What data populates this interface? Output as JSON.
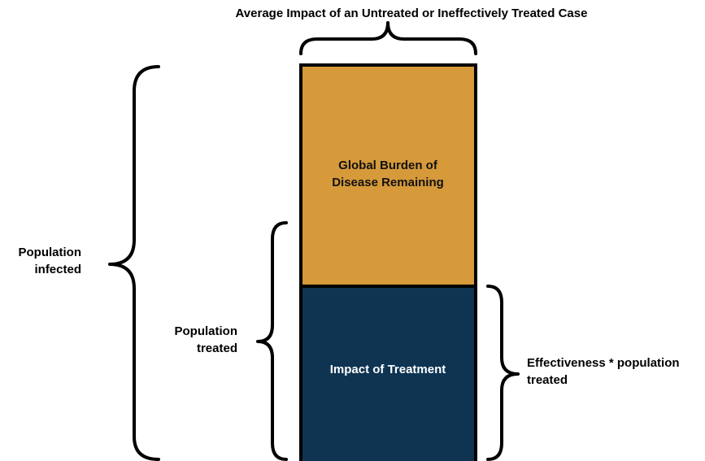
{
  "title": "Average Impact of an Untreated or Ineffectively Treated Case",
  "boxes": [
    {
      "label": [
        "Global Burden of",
        "Disease Remaining"
      ]
    },
    {
      "label": [
        "Impact of Treatment"
      ]
    }
  ],
  "braces": [
    {
      "label": [
        "Population",
        "infected"
      ]
    },
    {
      "label": [
        "Population",
        "treated"
      ]
    },
    {
      "label": [
        "Effectiveness * population",
        "treated"
      ]
    }
  ]
}
